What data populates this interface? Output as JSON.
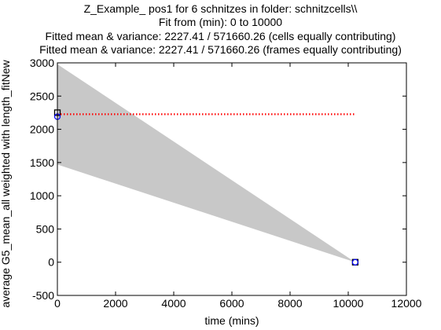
{
  "chart_data": {
    "type": "line",
    "title_lines": [
      "Z_Example_ pos1 for 6 schnitzes in folder: schnitzcells\\\\",
      "Fit from (min): 0 to 10000",
      "Fitted mean & variance: 2227.41 / 571660.26 (cells equally contributing)",
      "Fitted mean & variance: 2227.41 / 571660.26 (frames equally contributing)"
    ],
    "xlabel": "time (mins)",
    "ylabel": "average G5_mean_all weighted with length_fitNew",
    "xlim": [
      0,
      12000
    ],
    "ylim": [
      -500,
      3000
    ],
    "xticks": [
      0,
      2000,
      4000,
      6000,
      8000,
      10000,
      12000
    ],
    "yticks": [
      -500,
      0,
      500,
      1000,
      1500,
      2000,
      2500,
      3000
    ],
    "grid": false,
    "band": {
      "color": "#c8c8c8",
      "upper": [
        [
          0,
          2980
        ],
        [
          10240,
          0
        ]
      ],
      "lower": [
        [
          0,
          1470
        ],
        [
          10240,
          0
        ]
      ]
    },
    "mean_line": {
      "color": "#ff0000",
      "style": "dotted",
      "x": [
        0,
        10240
      ],
      "y": [
        2227.41,
        2227.41
      ]
    },
    "points": {
      "squares": {
        "color": "#000000",
        "x": [
          0,
          10240
        ],
        "y": [
          2250,
          0
        ]
      },
      "circles": {
        "color": "#0000ff",
        "x": [
          0,
          10240
        ],
        "y": [
          2190,
          0
        ]
      }
    }
  }
}
